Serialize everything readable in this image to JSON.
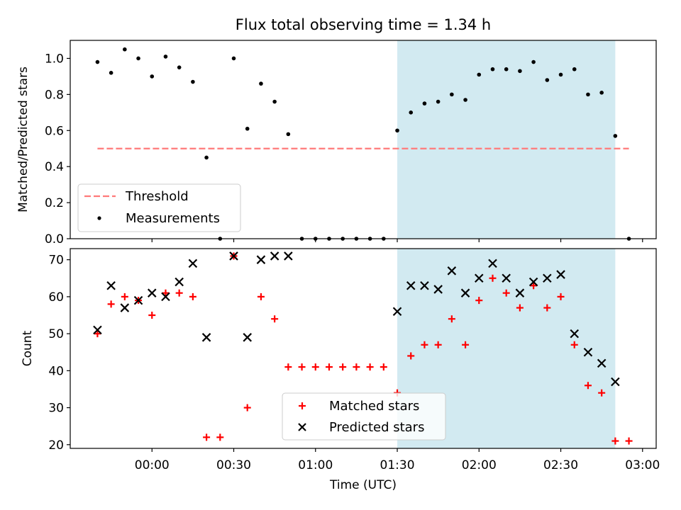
{
  "chart_data": [
    {
      "type": "scatter",
      "title": "Flux total observing time = 1.34 h",
      "xlabel": "",
      "ylabel": "Matched/Predicted stars",
      "ylim": [
        0,
        1.1
      ],
      "yticks": [
        "0.0",
        "0.2",
        "0.4",
        "0.6",
        "0.8",
        "1.0"
      ],
      "highlight_span": {
        "start": "01:30",
        "end": "02:50",
        "color": "#add8e6"
      },
      "threshold": {
        "name": "Threshold",
        "value": 0.5,
        "x_start": "23:40",
        "x_end": "02:55",
        "color": "#ff7a7a",
        "style": "dashed"
      },
      "series": [
        {
          "name": "Measurements",
          "marker": "dot",
          "color": "#000000",
          "x": [
            "23:40",
            "23:45",
            "23:50",
            "23:55",
            "00:00",
            "00:05",
            "00:10",
            "00:15",
            "00:20",
            "00:25",
            "00:30",
            "00:35",
            "00:40",
            "00:45",
            "00:50",
            "00:55",
            "01:00",
            "01:05",
            "01:10",
            "01:15",
            "01:20",
            "01:25",
            "01:30",
            "01:35",
            "01:40",
            "01:45",
            "01:50",
            "01:55",
            "02:00",
            "02:05",
            "02:10",
            "02:15",
            "02:20",
            "02:25",
            "02:30",
            "02:35",
            "02:40",
            "02:45",
            "02:50",
            "02:55"
          ],
          "values": [
            0.98,
            0.92,
            1.05,
            1.0,
            0.9,
            1.01,
            0.95,
            0.87,
            0.45,
            0.0,
            1.0,
            0.61,
            0.86,
            0.76,
            0.58,
            0.0,
            0.0,
            0.0,
            0.0,
            0.0,
            0.0,
            0.0,
            0.6,
            0.7,
            0.75,
            0.76,
            0.8,
            0.77,
            0.91,
            0.94,
            0.94,
            0.93,
            0.98,
            0.88,
            0.91,
            0.94,
            0.8,
            0.81,
            0.57,
            0.0
          ]
        }
      ],
      "legend": {
        "position": "bottom-left",
        "entries": [
          "Threshold",
          "Measurements"
        ]
      },
      "grid": false
    },
    {
      "type": "scatter",
      "title": "",
      "xlabel": "Time (UTC)",
      "ylabel": "Count",
      "ylim": [
        19,
        73
      ],
      "yticks": [
        "20",
        "30",
        "40",
        "50",
        "60",
        "70"
      ],
      "xticks": [
        "00:00",
        "00:30",
        "01:00",
        "01:30",
        "02:00",
        "02:30",
        "03:00"
      ],
      "x_range": [
        "23:30",
        "03:05"
      ],
      "highlight_span": {
        "start": "01:30",
        "end": "02:50",
        "color": "#add8e6"
      },
      "series": [
        {
          "name": "Matched stars",
          "marker": "plus",
          "color": "#ff0000",
          "x": [
            "23:40",
            "23:45",
            "23:50",
            "23:55",
            "00:00",
            "00:05",
            "00:10",
            "00:15",
            "00:20",
            "00:25",
            "00:30",
            "00:35",
            "00:40",
            "00:45",
            "00:50",
            "00:55",
            "01:00",
            "01:05",
            "01:10",
            "01:15",
            "01:20",
            "01:25",
            "01:30",
            "01:35",
            "01:40",
            "01:45",
            "01:50",
            "01:55",
            "02:00",
            "02:05",
            "02:10",
            "02:15",
            "02:20",
            "02:25",
            "02:30",
            "02:35",
            "02:40",
            "02:45",
            "02:50",
            "02:55"
          ],
          "values": [
            50,
            58,
            60,
            59,
            55,
            61,
            61,
            60,
            22,
            22,
            71,
            30,
            60,
            54,
            41,
            41,
            41,
            41,
            41,
            41,
            41,
            41,
            34,
            44,
            47,
            47,
            54,
            47,
            59,
            65,
            61,
            57,
            63,
            57,
            60,
            47,
            36,
            34,
            21,
            21
          ]
        },
        {
          "name": "Predicted stars",
          "marker": "x",
          "color": "#000000",
          "x": [
            "23:40",
            "23:45",
            "23:50",
            "23:55",
            "00:00",
            "00:05",
            "00:10",
            "00:15",
            "00:20",
            "00:30",
            "00:35",
            "00:40",
            "00:45",
            "00:50",
            "01:30",
            "01:35",
            "01:40",
            "01:45",
            "01:50",
            "01:55",
            "02:00",
            "02:05",
            "02:10",
            "02:15",
            "02:20",
            "02:25",
            "02:30",
            "02:35",
            "02:40",
            "02:45",
            "02:50"
          ],
          "values": [
            51,
            63,
            57,
            59,
            61,
            60,
            64,
            69,
            49,
            71,
            49,
            70,
            71,
            71,
            56,
            63,
            63,
            62,
            67,
            61,
            65,
            69,
            65,
            61,
            64,
            65,
            66,
            50,
            45,
            42,
            37
          ]
        }
      ],
      "legend": {
        "position": "bottom-center",
        "entries": [
          "Matched stars",
          "Predicted stars"
        ]
      },
      "grid": false
    }
  ]
}
